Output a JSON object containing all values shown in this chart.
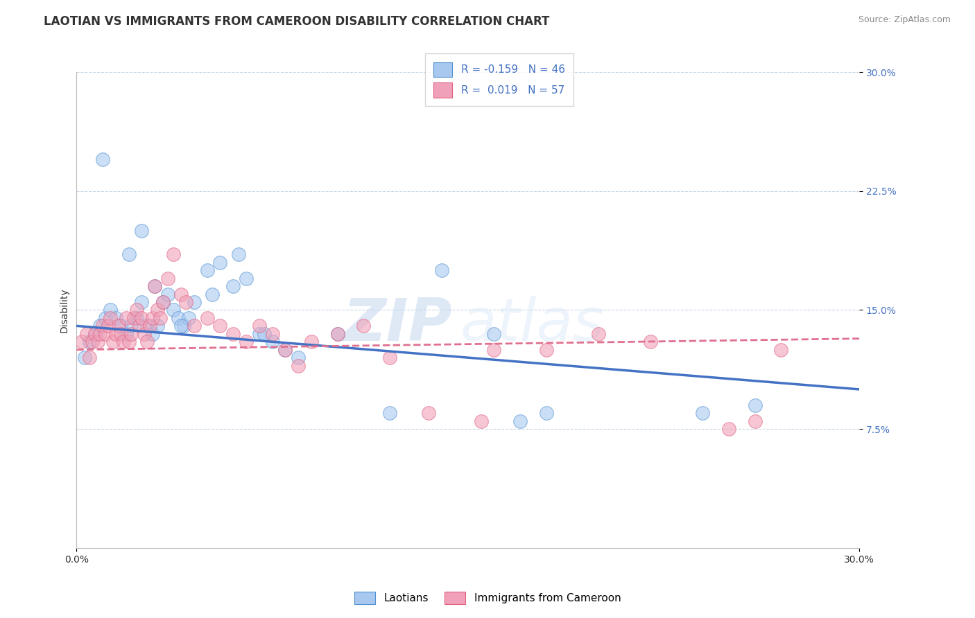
{
  "title": "LAOTIAN VS IMMIGRANTS FROM CAMEROON DISABILITY CORRELATION CHART",
  "source": "Source: ZipAtlas.com",
  "ylabel": "Disability",
  "xlim": [
    0.0,
    30.0
  ],
  "ylim": [
    0.0,
    30.0
  ],
  "watermark_line1": "ZIP",
  "watermark_line2": "atlas",
  "legend_r1": "R = -0.159",
  "legend_n1": "N = 46",
  "legend_r2": "R =  0.019",
  "legend_n2": "N = 57",
  "color_blue_fill": "#A8C8F0",
  "color_pink_fill": "#F0A0B8",
  "color_blue_edge": "#5090D0",
  "color_pink_edge": "#E06080",
  "color_blue_line": "#4472C4",
  "color_pink_line": "#E07090",
  "laotian_x": [
    1.0,
    2.5,
    0.3,
    0.5,
    0.7,
    0.9,
    1.1,
    1.3,
    1.5,
    1.7,
    1.9,
    2.1,
    2.3,
    2.5,
    2.7,
    2.9,
    3.1,
    3.3,
    3.5,
    3.7,
    3.9,
    4.1,
    4.3,
    4.5,
    5.0,
    5.5,
    6.0,
    6.5,
    7.0,
    7.5,
    8.0,
    8.5,
    10.0,
    12.0,
    14.0,
    16.0,
    17.0,
    18.0,
    2.0,
    3.0,
    4.0,
    5.2,
    6.2,
    7.2,
    24.0,
    26.0
  ],
  "laotian_y": [
    24.5,
    20.0,
    12.0,
    13.0,
    13.5,
    14.0,
    14.5,
    15.0,
    14.5,
    14.0,
    13.5,
    14.0,
    14.5,
    15.5,
    14.0,
    13.5,
    14.0,
    15.5,
    16.0,
    15.0,
    14.5,
    14.0,
    14.5,
    15.5,
    17.5,
    18.0,
    16.5,
    17.0,
    13.5,
    13.0,
    12.5,
    12.0,
    13.5,
    8.5,
    17.5,
    13.5,
    8.0,
    8.5,
    18.5,
    16.5,
    14.0,
    16.0,
    18.5,
    13.5,
    8.5,
    9.0
  ],
  "cameroon_x": [
    0.2,
    0.4,
    0.5,
    0.6,
    0.7,
    0.8,
    0.9,
    1.0,
    1.1,
    1.2,
    1.3,
    1.4,
    1.5,
    1.6,
    1.7,
    1.8,
    1.9,
    2.0,
    2.1,
    2.2,
    2.3,
    2.4,
    2.5,
    2.6,
    2.7,
    2.8,
    2.9,
    3.0,
    3.1,
    3.2,
    3.3,
    3.5,
    3.7,
    4.0,
    4.2,
    4.5,
    5.0,
    5.5,
    6.0,
    6.5,
    7.0,
    7.5,
    8.0,
    8.5,
    9.0,
    10.0,
    11.0,
    12.0,
    13.5,
    15.5,
    18.0,
    20.0,
    22.0,
    25.0,
    26.0,
    27.0,
    16.0
  ],
  "cameroon_y": [
    13.0,
    13.5,
    12.0,
    13.0,
    13.5,
    13.0,
    13.5,
    14.0,
    13.5,
    14.0,
    14.5,
    13.0,
    13.5,
    14.0,
    13.5,
    13.0,
    14.5,
    13.0,
    13.5,
    14.5,
    15.0,
    14.0,
    14.5,
    13.5,
    13.0,
    14.0,
    14.5,
    16.5,
    15.0,
    14.5,
    15.5,
    17.0,
    18.5,
    16.0,
    15.5,
    14.0,
    14.5,
    14.0,
    13.5,
    13.0,
    14.0,
    13.5,
    12.5,
    11.5,
    13.0,
    13.5,
    14.0,
    12.0,
    8.5,
    8.0,
    12.5,
    13.5,
    13.0,
    7.5,
    8.0,
    12.5,
    12.5
  ],
  "blue_trend": [
    0.0,
    14.0,
    30.0,
    10.0
  ],
  "pink_trend": [
    0.0,
    12.5,
    30.0,
    13.2
  ],
  "background_color": "#FFFFFF",
  "grid_color": "#C8D4E8",
  "title_fontsize": 12,
  "source_fontsize": 9,
  "ylabel_fontsize": 10,
  "tick_fontsize": 10,
  "legend_fontsize": 11
}
